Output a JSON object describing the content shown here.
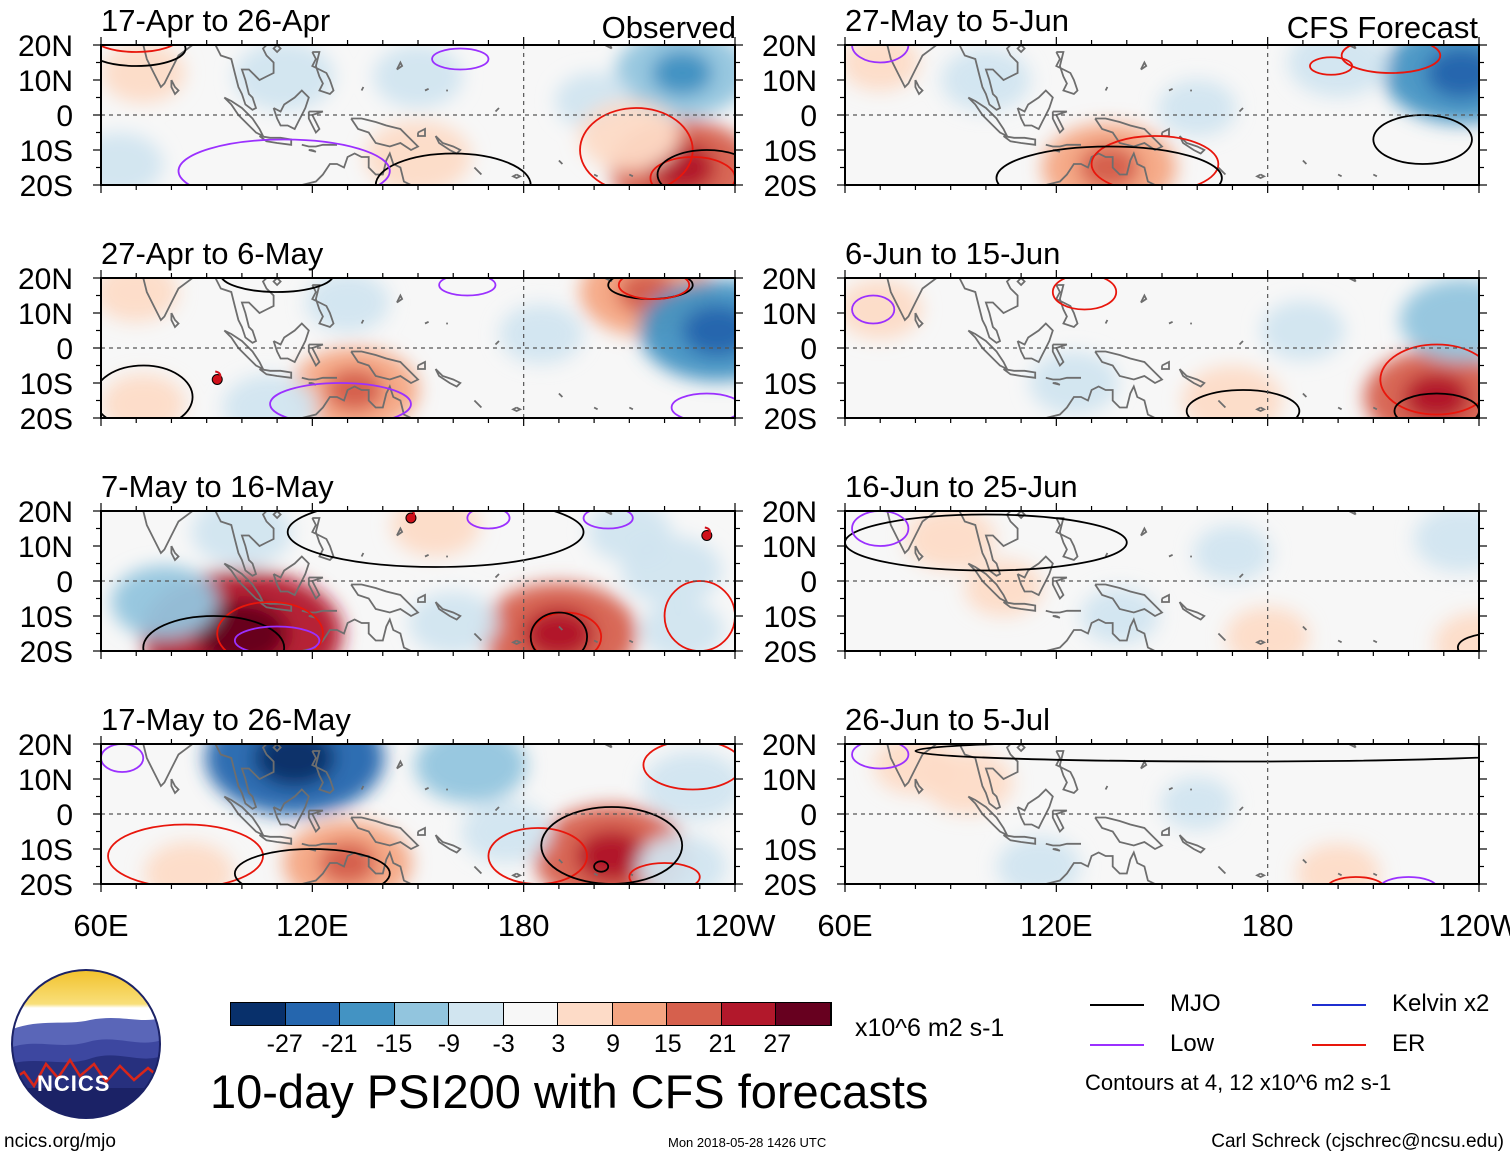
{
  "figure": {
    "title": "10-day PSI200 with CFS forecasts",
    "source_url": "ncics.org/mjo",
    "timestamp": "Mon 2018-05-28 1426 UTC",
    "author": "Carl Schreck (cjschrec@ncsu.edu)",
    "logo_text": "NCICS"
  },
  "columns": {
    "left_heading": "Observed",
    "right_heading": "CFS Forecast"
  },
  "colorbar": {
    "units": "x10^6 m2 s-1",
    "ticks": [
      "-27",
      "-21",
      "-15",
      "-9",
      "-3",
      "3",
      "9",
      "15",
      "21",
      "27"
    ],
    "colors": [
      "#08306b",
      "#2566ae",
      "#4393c3",
      "#92c5de",
      "#d1e5f0",
      "#f7f7f7",
      "#fddbc7",
      "#f4a582",
      "#d6604d",
      "#b2182b",
      "#67001f"
    ]
  },
  "legend": {
    "items": [
      {
        "label": "MJO",
        "color": "#000000"
      },
      {
        "label": "Kelvin x2",
        "color": "#1f2fd0"
      },
      {
        "label": "Low",
        "color": "#9b30ff"
      },
      {
        "label": "ER",
        "color": "#e8160c"
      }
    ],
    "contours_note": "Contours at 4, 12 x10^6 m2 s-1"
  },
  "chart_data": {
    "type": "heatmap",
    "variable": "PSI200 anomaly",
    "units": "x10^6 m2 s-1",
    "lat_labels": [
      "20N",
      "10N",
      "0",
      "10S",
      "20S"
    ],
    "lon_labels": [
      "60E",
      "120E",
      "180",
      "120W"
    ],
    "lat_range": [
      -20,
      20
    ],
    "lon_range": [
      60,
      240
    ],
    "panels": [
      {
        "period": "17-Apr to 26-Apr",
        "source": "Observed",
        "blobs": [
          {
            "lon": 112,
            "lat": 11,
            "value": -8
          },
          {
            "lon": 150,
            "lat": 11,
            "value": -6
          },
          {
            "lon": 225,
            "lat": 12,
            "value": -14
          },
          {
            "lon": 200,
            "lat": 4,
            "value": -4
          },
          {
            "lon": 225,
            "lat": -15,
            "value": 16
          },
          {
            "lon": 150,
            "lat": -12,
            "value": 9
          },
          {
            "lon": 65,
            "lat": -14,
            "value": -6
          },
          {
            "lon": 72,
            "lat": 12,
            "value": 5
          },
          {
            "lon": 210,
            "lat": -6,
            "value": 8
          }
        ]
      },
      {
        "period": "27-Apr to 6-May",
        "source": "Observed",
        "blobs": [
          {
            "lon": 70,
            "lat": 16,
            "value": 5
          },
          {
            "lon": 215,
            "lat": 16,
            "value": 14
          },
          {
            "lon": 132,
            "lat": -12,
            "value": 13
          },
          {
            "lon": 108,
            "lat": -17,
            "value": -7
          },
          {
            "lon": 235,
            "lat": 5,
            "value": -18
          },
          {
            "lon": 185,
            "lat": 4,
            "value": -5
          },
          {
            "lon": 130,
            "lat": 13,
            "value": -5
          },
          {
            "lon": 72,
            "lat": -16,
            "value": 5
          }
        ]
      },
      {
        "period": "7-May to 16-May",
        "source": "Observed",
        "blobs": [
          {
            "lon": 100,
            "lat": -15,
            "value": 26
          },
          {
            "lon": 78,
            "lat": -6,
            "value": -9
          },
          {
            "lon": 190,
            "lat": -15,
            "value": 18
          },
          {
            "lon": 155,
            "lat": 16,
            "value": 6
          },
          {
            "lon": 100,
            "lat": 14,
            "value": -8
          },
          {
            "lon": 160,
            "lat": -12,
            "value": -6
          },
          {
            "lon": 222,
            "lat": 3,
            "value": -8
          },
          {
            "lon": 225,
            "lat": -14,
            "value": -5
          },
          {
            "lon": 210,
            "lat": 14,
            "value": -5
          }
        ]
      },
      {
        "period": "17-May to 26-May",
        "source": "Observed",
        "blobs": [
          {
            "lon": 115,
            "lat": 16,
            "value": -22
          },
          {
            "lon": 165,
            "lat": 14,
            "value": -10
          },
          {
            "lon": 205,
            "lat": -12,
            "value": 18
          },
          {
            "lon": 130,
            "lat": -14,
            "value": 13
          },
          {
            "lon": 175,
            "lat": -5,
            "value": -6
          },
          {
            "lon": 228,
            "lat": 8,
            "value": -8
          },
          {
            "lon": 85,
            "lat": -17,
            "value": 6
          },
          {
            "lon": 225,
            "lat": -15,
            "value": -6
          }
        ]
      },
      {
        "period": "27-May to 5-Jun",
        "source": "CFS Forecast",
        "blobs": [
          {
            "lon": 135,
            "lat": -15,
            "value": 14
          },
          {
            "lon": 235,
            "lat": 12,
            "value": -18
          },
          {
            "lon": 200,
            "lat": 15,
            "value": -8
          },
          {
            "lon": 100,
            "lat": 10,
            "value": -6
          },
          {
            "lon": 160,
            "lat": 2,
            "value": -4
          },
          {
            "lon": 70,
            "lat": 15,
            "value": 4
          }
        ]
      },
      {
        "period": "6-Jun to 15-Jun",
        "source": "CFS Forecast",
        "blobs": [
          {
            "lon": 228,
            "lat": -14,
            "value": 16
          },
          {
            "lon": 170,
            "lat": -15,
            "value": 8
          },
          {
            "lon": 235,
            "lat": 8,
            "value": -12
          },
          {
            "lon": 125,
            "lat": -10,
            "value": -6
          },
          {
            "lon": 70,
            "lat": 11,
            "value": 5
          },
          {
            "lon": 190,
            "lat": 5,
            "value": -5
          }
        ]
      },
      {
        "period": "16-Jun to 25-Jun",
        "source": "CFS Forecast",
        "blobs": [
          {
            "lon": 90,
            "lat": 12,
            "value": 6
          },
          {
            "lon": 105,
            "lat": -2,
            "value": 4
          },
          {
            "lon": 180,
            "lat": -16,
            "value": 5
          },
          {
            "lon": 235,
            "lat": 12,
            "value": -7
          },
          {
            "lon": 170,
            "lat": 8,
            "value": -4
          },
          {
            "lon": 138,
            "lat": -10,
            "value": -4
          },
          {
            "lon": 240,
            "lat": -18,
            "value": 6
          }
        ]
      },
      {
        "period": "26-Jun to 5-Jul",
        "source": "CFS Forecast",
        "blobs": [
          {
            "lon": 95,
            "lat": 9,
            "value": 6
          },
          {
            "lon": 80,
            "lat": 14,
            "value": 5
          },
          {
            "lon": 115,
            "lat": -15,
            "value": -5
          },
          {
            "lon": 200,
            "lat": -17,
            "value": 5
          },
          {
            "lon": 160,
            "lat": 3,
            "value": -3
          }
        ]
      }
    ]
  }
}
